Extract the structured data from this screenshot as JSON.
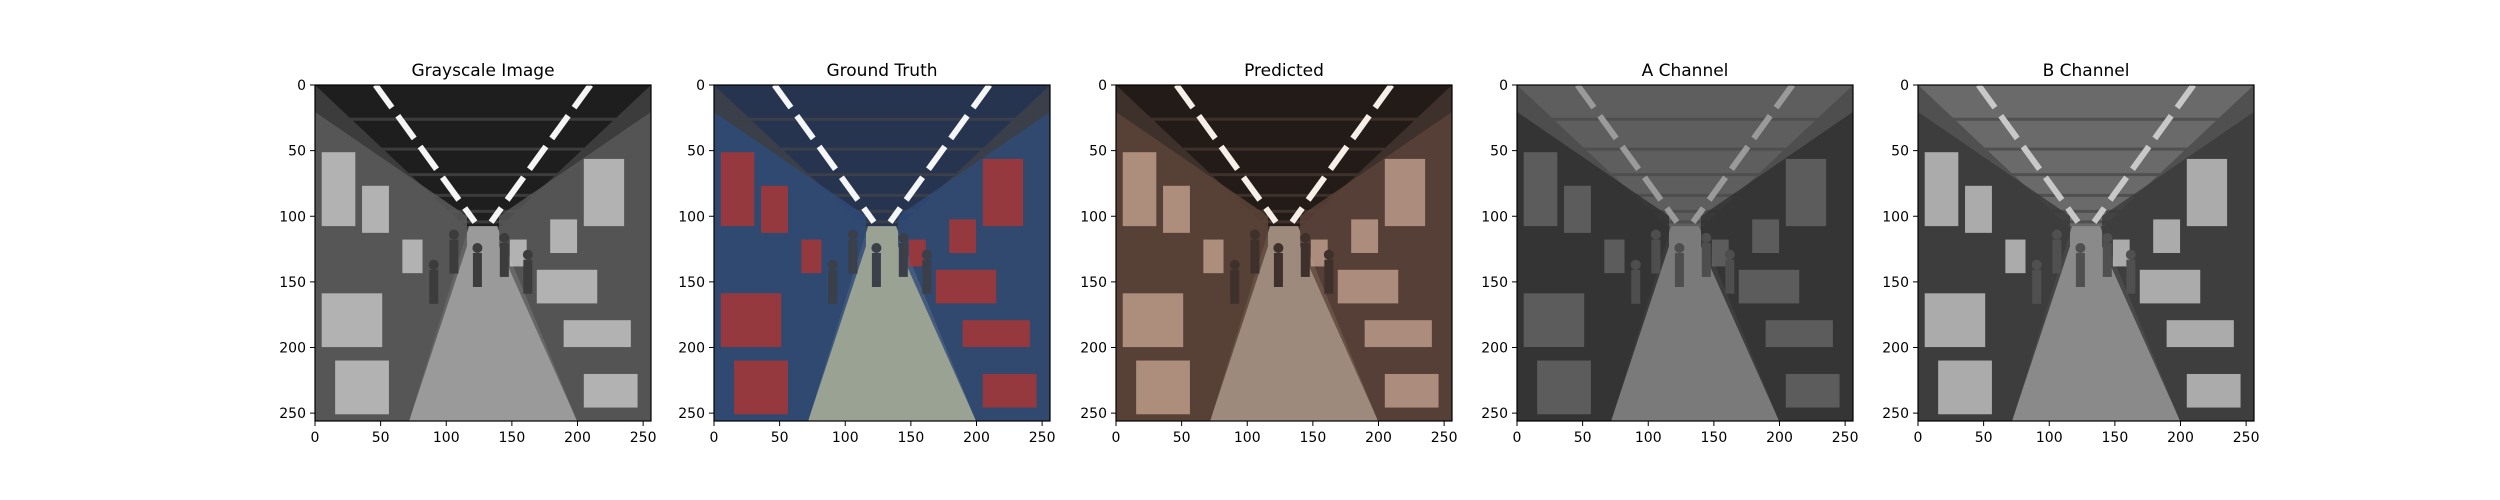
{
  "chart_data": [
    {
      "type": "image",
      "title": "Grayscale Image",
      "xlim": [
        0,
        256
      ],
      "ylim": [
        256,
        0
      ],
      "xticks": [
        0,
        50,
        100,
        150,
        200,
        250
      ],
      "yticks": [
        0,
        50,
        100,
        150,
        200,
        250
      ],
      "colormap": "gray",
      "colors": {
        "floor": "#9a9a9a",
        "wall": "#3c3c3c",
        "roof": "#1e1e1e",
        "light": "#f5f5f5",
        "stall_a": "#d2d2d2",
        "stall_b": "#5a5a5a"
      }
    },
    {
      "type": "image",
      "title": "Ground Truth",
      "xlim": [
        0,
        256
      ],
      "ylim": [
        256,
        0
      ],
      "xticks": [
        0,
        50,
        100,
        150,
        200,
        250
      ],
      "yticks": [
        0,
        50,
        100,
        150,
        200,
        250
      ],
      "colormap": "rgb",
      "colors": {
        "floor": "#9aa294",
        "wall": "#3a3f4a",
        "roof": "#26344f",
        "light": "#f4f6f8",
        "stall_a": "#b8342e",
        "stall_b": "#2f4b78"
      }
    },
    {
      "type": "image",
      "title": "Predicted",
      "xlim": [
        0,
        256
      ],
      "ylim": [
        256,
        0
      ],
      "xticks": [
        0,
        50,
        100,
        150,
        200,
        250
      ],
      "yticks": [
        0,
        50,
        100,
        150,
        200,
        250
      ],
      "colormap": "rgb",
      "colors": {
        "floor": "#9e8a7c",
        "wall": "#3e302a",
        "roof": "#231b17",
        "light": "#f6efe8",
        "stall_a": "#c9a896",
        "stall_b": "#5c4439"
      }
    },
    {
      "type": "image",
      "title": "A Channel",
      "xlim": [
        0,
        256
      ],
      "ylim": [
        256,
        0
      ],
      "xticks": [
        0,
        50,
        100,
        150,
        200,
        250
      ],
      "yticks": [
        0,
        50,
        100,
        150,
        200,
        250
      ],
      "colormap": "gray",
      "colors": {
        "floor": "#7a7a7a",
        "wall": "#4e4e4e",
        "roof": "#5e5e5e",
        "light": "#9a9a9a",
        "stall_a": "#6a6a6a",
        "stall_b": "#303030"
      }
    },
    {
      "type": "image",
      "title": "B Channel",
      "xlim": [
        0,
        256
      ],
      "ylim": [
        256,
        0
      ],
      "xticks": [
        0,
        50,
        100,
        150,
        200,
        250
      ],
      "yticks": [
        0,
        50,
        100,
        150,
        200,
        250
      ],
      "colormap": "gray",
      "colors": {
        "floor": "#8a8a8a",
        "wall": "#505050",
        "roof": "#6a6a6a",
        "light": "#c8c8c8",
        "stall_a": "#d0d0d0",
        "stall_b": "#3a3a3a"
      }
    }
  ]
}
